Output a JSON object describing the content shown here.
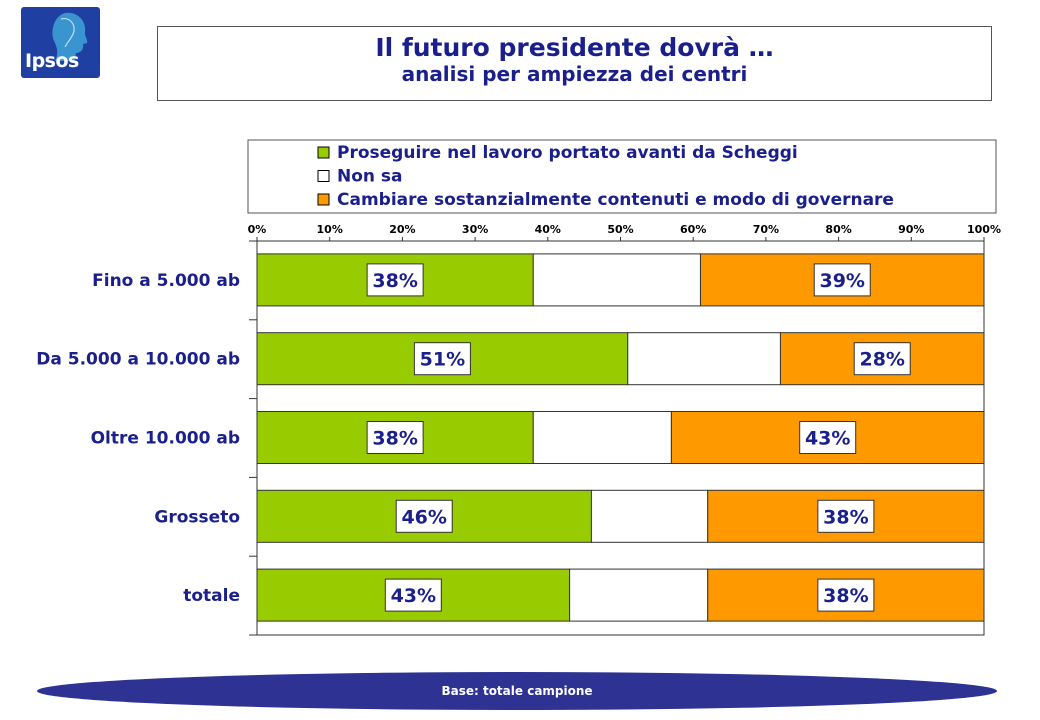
{
  "logo": {
    "text": "Ipsos"
  },
  "header": {
    "title": "Il futuro presidente dovrà …",
    "subtitle": "analisi per ampiezza dei centri"
  },
  "footer": {
    "text": "Base: totale campione"
  },
  "colors": {
    "green": "#99cc00",
    "white": "#ffffff",
    "orange": "#ff9900",
    "text": "#1a1f8c"
  },
  "chart_data": {
    "type": "bar",
    "orientation": "horizontal-stacked-100",
    "xlim": [
      0,
      100
    ],
    "x_ticks": [
      "0%",
      "10%",
      "20%",
      "30%",
      "40%",
      "50%",
      "60%",
      "70%",
      "80%",
      "90%",
      "100%"
    ],
    "categories": [
      "Fino a 5.000 ab",
      "Da 5.000 a 10.000 ab",
      "Oltre 10.000 ab",
      "Grosseto",
      "totale"
    ],
    "series": [
      {
        "name": "Proseguire nel lavoro portato avanti da Scheggi",
        "color": "#99cc00",
        "values": [
          38,
          51,
          38,
          46,
          43
        ],
        "labels": [
          "38%",
          "51%",
          "38%",
          "46%",
          "43%"
        ]
      },
      {
        "name": "Non sa",
        "color": "#ffffff",
        "values": [
          23,
          21,
          19,
          16,
          19
        ],
        "labels": [
          "",
          "",
          "",
          "",
          ""
        ]
      },
      {
        "name": "Cambiare sostanzialmente contenuti e modo di governare",
        "color": "#ff9900",
        "values": [
          39,
          28,
          43,
          38,
          38
        ],
        "labels": [
          "39%",
          "28%",
          "43%",
          "38%",
          "38%"
        ]
      }
    ],
    "legend_position": "top",
    "grid": false
  }
}
